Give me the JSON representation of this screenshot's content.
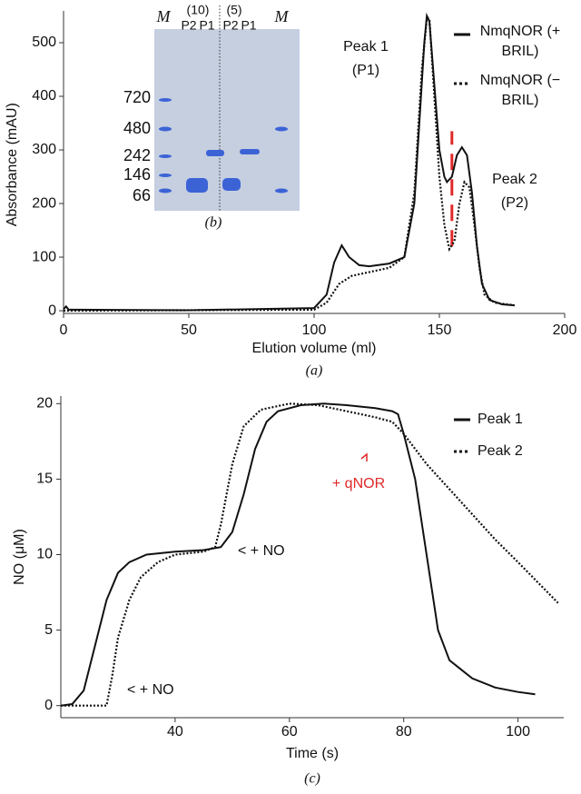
{
  "chart_data": [
    {
      "type": "line",
      "caption": "(a)",
      "xlabel": "Elution volume (ml)",
      "ylabel": "Absorbance (mAU)",
      "xlim": [
        0,
        200
      ],
      "xticks": [
        0,
        50,
        100,
        150,
        200
      ],
      "ylim": [
        -5,
        550
      ],
      "yticks": [
        0,
        100,
        200,
        300,
        400,
        500
      ],
      "legend": "upper right",
      "series": [
        {
          "name": "NmqNOR (+ BRIL)",
          "color": "#111111",
          "style": "solid",
          "x": [
            0,
            1,
            2,
            5,
            50,
            100,
            105,
            108,
            111,
            114,
            118,
            122,
            130,
            136,
            140,
            142,
            144,
            145,
            146,
            148,
            150,
            152,
            153,
            155,
            157,
            159,
            161,
            163,
            165,
            167,
            170,
            175,
            180
          ],
          "values": [
            3,
            8,
            2,
            2,
            1,
            5,
            30,
            90,
            122,
            100,
            85,
            83,
            88,
            100,
            200,
            350,
            500,
            550,
            540,
            420,
            300,
            250,
            240,
            250,
            290,
            305,
            290,
            220,
            120,
            50,
            20,
            12,
            10
          ]
        },
        {
          "name": "NmqNOR (− BRIL)",
          "color": "#111111",
          "style": "dotted",
          "x": [
            0,
            100,
            105,
            110,
            115,
            120,
            130,
            136,
            140,
            143,
            145,
            146,
            148,
            150,
            152,
            154,
            156,
            158,
            160,
            162,
            164,
            166,
            168,
            172,
            180
          ],
          "values": [
            0,
            2,
            15,
            50,
            65,
            70,
            80,
            100,
            220,
            450,
            545,
            545,
            400,
            250,
            160,
            115,
            130,
            200,
            240,
            230,
            160,
            80,
            30,
            15,
            10
          ]
        }
      ],
      "vline": {
        "x": 155,
        "range": [
          120,
          335
        ],
        "color": "#e02828"
      },
      "annotations": [
        "Peak 1",
        "(P1)",
        "Peak 2",
        "(P2)"
      ]
    },
    {
      "type": "line",
      "caption": "(c)",
      "xlabel": "Time (s)",
      "ylabel": "NO (μM)",
      "xlim": [
        20,
        108
      ],
      "xticks": [
        40,
        60,
        80,
        100
      ],
      "ylim": [
        -0.8,
        20.5
      ],
      "yticks": [
        0,
        5,
        10,
        15,
        20
      ],
      "legend": "upper right",
      "series": [
        {
          "name": "Peak 1",
          "color": "#111111",
          "style": "solid",
          "x": [
            20,
            22,
            24,
            26,
            28,
            30,
            32,
            35,
            40,
            45,
            48,
            50,
            52,
            54,
            56,
            58,
            62,
            66,
            70,
            75,
            78,
            79,
            80,
            82,
            84,
            86,
            88,
            92,
            96,
            100,
            103
          ],
          "values": [
            0,
            0.1,
            1,
            4,
            7,
            8.8,
            9.5,
            10,
            10.2,
            10.3,
            10.5,
            11.5,
            14,
            17,
            18.8,
            19.5,
            19.9,
            20,
            19.9,
            19.7,
            19.5,
            19.3,
            18,
            15,
            10,
            5,
            3,
            1.8,
            1.2,
            0.9,
            0.75
          ]
        },
        {
          "name": "Peak 2",
          "color": "#111111",
          "style": "dotted",
          "x": [
            20,
            28,
            29,
            30,
            32,
            34,
            37,
            40,
            45,
            47,
            48,
            50,
            52,
            55,
            60,
            65,
            70,
            75,
            78,
            80,
            84,
            90,
            96,
            100,
            107
          ],
          "values": [
            0,
            0,
            2,
            4.5,
            7,
            8.5,
            9.5,
            10,
            10.2,
            10.5,
            12,
            16,
            18.5,
            19.6,
            20,
            19.9,
            19.5,
            19.1,
            18.8,
            18,
            16,
            13.5,
            11,
            9.5,
            6.8
          ]
        }
      ],
      "annotations": [
        "< + NO",
        "< + NO",
        "+ qNOR"
      ],
      "annotation_color": "#e02828"
    }
  ],
  "figure_b": {
    "lane_labels": [
      "M",
      "P2",
      "P1",
      "P2",
      "P1",
      "M"
    ],
    "loadings": [
      "(10)",
      "(5)"
    ],
    "markers": [
      "720",
      "480",
      "242",
      "146",
      "66"
    ],
    "caption": "(b)"
  }
}
